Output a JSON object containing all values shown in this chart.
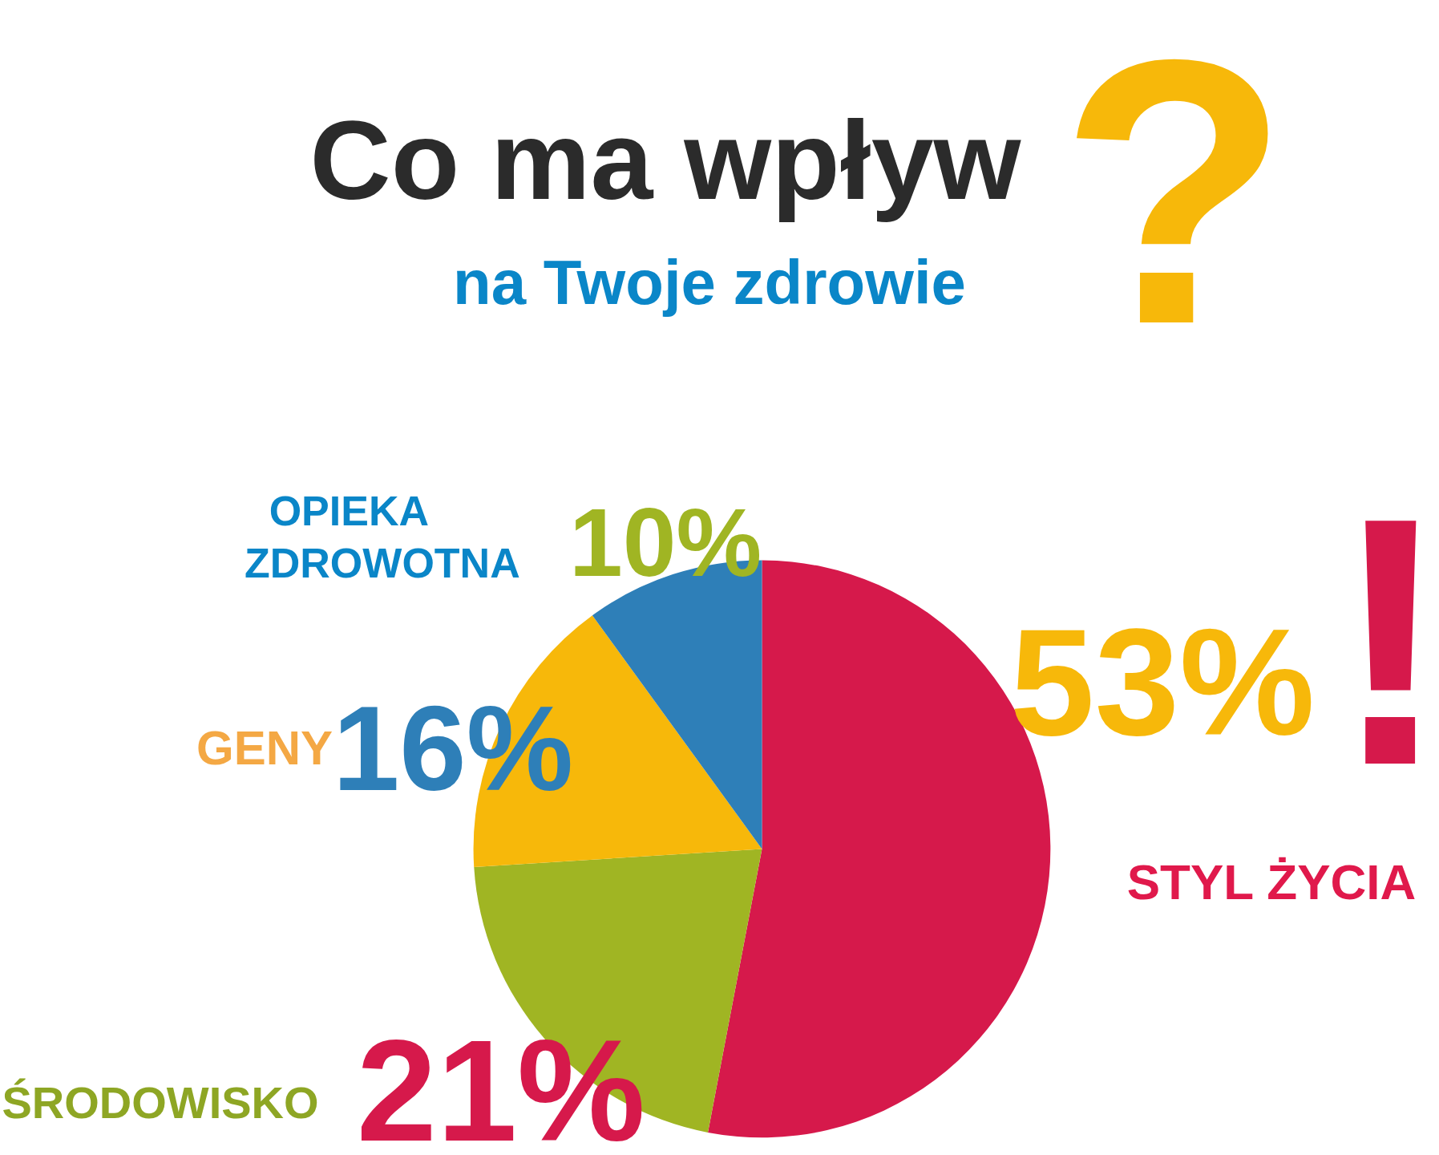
{
  "chart_data": {
    "type": "pie",
    "title": "Co ma wpływ",
    "subtitle": "na Twoje zdrowie",
    "annotations": [
      "?",
      "!"
    ],
    "categories": [
      "STYL ŻYCIA",
      "ŚRODOWISKO",
      "GENY",
      "OPIEKA ZDROWOTNA"
    ],
    "values": [
      53,
      21,
      16,
      10
    ],
    "colors": [
      "#d6194b",
      "#a0b523",
      "#f7b80a",
      "#2e7fb8"
    ],
    "value_labels": [
      "53%",
      "21%",
      "16%",
      "10%"
    ],
    "legend": false
  }
}
